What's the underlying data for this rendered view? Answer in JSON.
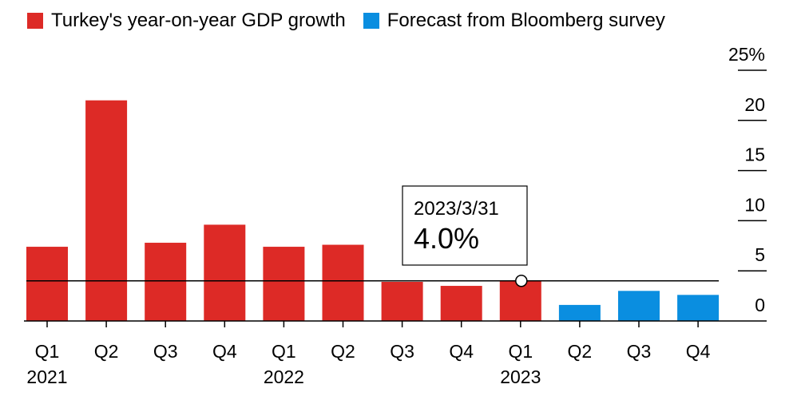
{
  "legend": {
    "actual_label": "Turkey's year-on-year GDP growth",
    "forecast_label": "Forecast from Bloomberg survey"
  },
  "colors": {
    "actual": "#dd2a26",
    "forecast": "#0a8ee0",
    "text": "#000000"
  },
  "tooltip": {
    "date": "2023/3/31",
    "value_label": "4.0%"
  },
  "chart_data": {
    "type": "bar",
    "categories": [
      "Q1",
      "Q2",
      "Q3",
      "Q4",
      "Q1",
      "Q2",
      "Q3",
      "Q4",
      "Q1",
      "Q2",
      "Q3",
      "Q4"
    ],
    "year_labels": [
      {
        "label": "2021",
        "category_index": 0
      },
      {
        "label": "2022",
        "category_index": 4
      },
      {
        "label": "2023",
        "category_index": 8
      }
    ],
    "series": [
      {
        "name": "Turkey's year-on-year GDP growth",
        "values": [
          7.4,
          22.0,
          7.8,
          9.6,
          7.4,
          7.6,
          3.9,
          3.5,
          4.0,
          null,
          null,
          null
        ]
      },
      {
        "name": "Forecast from Bloomberg survey",
        "values": [
          null,
          null,
          null,
          null,
          null,
          null,
          null,
          null,
          null,
          1.6,
          3.0,
          2.6
        ]
      }
    ],
    "reference_line": 4.0,
    "highlight_index": 8,
    "ylim": [
      0,
      25
    ],
    "yticks": [
      {
        "value": 0,
        "label": "0"
      },
      {
        "value": 5,
        "label": "5"
      },
      {
        "value": 10,
        "label": "10"
      },
      {
        "value": 15,
        "label": "15"
      },
      {
        "value": 20,
        "label": "20"
      },
      {
        "value": 25,
        "label": "25%"
      }
    ],
    "y_axis_position": "right",
    "title": "",
    "xlabel": "",
    "ylabel": ""
  }
}
